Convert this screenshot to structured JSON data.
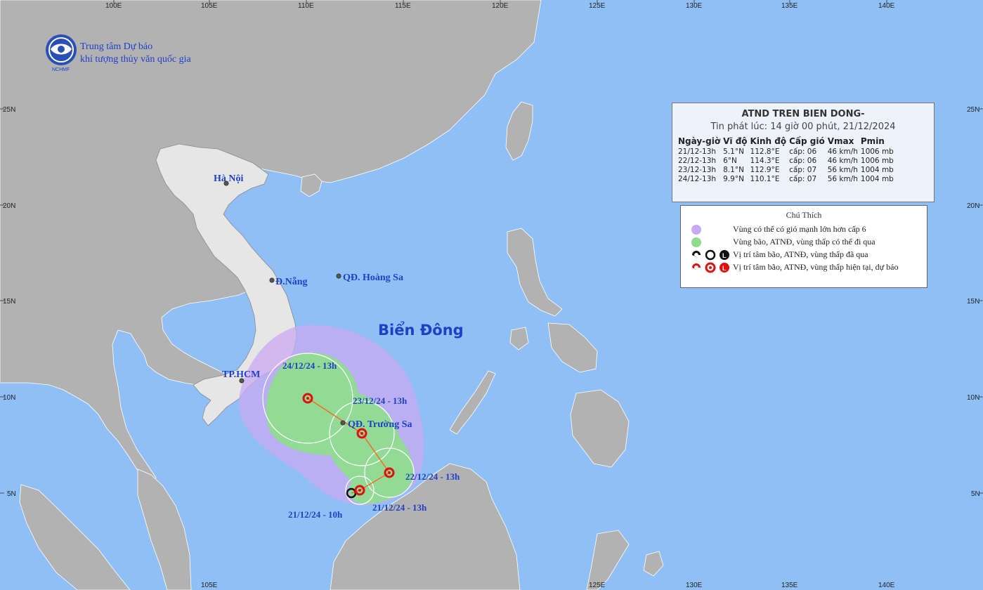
{
  "organization": {
    "line1": "Trung tâm Dự báo",
    "line2": "khí tượng thủy văn quốc gia",
    "logo_text": "NCHMF"
  },
  "grid": {
    "lon_top": [
      "100E",
      "105E",
      "110E",
      "115E",
      "120E",
      "125E",
      "130E",
      "135E",
      "140E"
    ],
    "lon_bottom": [
      "105E",
      "125E",
      "130E",
      "135E",
      "140E"
    ],
    "lat_left": [
      "25N",
      "20N",
      "15N",
      "10N",
      "5N"
    ],
    "lat_right": [
      "25N",
      "20N",
      "15N",
      "10N",
      "5N"
    ]
  },
  "places": {
    "hanoi": "Hà Nội",
    "danang": "Đ.Nẵng",
    "hoangsa": "QĐ. Hoàng Sa",
    "truongsa": "QĐ. Trường Sa",
    "hcm": "TP.HCM",
    "bien_dong": "Biển Đông"
  },
  "track_labels": {
    "t0": "21/12/24 - 10h",
    "t1": "21/12/24 - 13h",
    "t2": "22/12/24 - 13h",
    "t3": "23/12/24 - 13h",
    "t4": "24/12/24 - 13h"
  },
  "info_box": {
    "title": "ATND TREN BIEN DONG-",
    "subtitle": "Tin phát lúc: 14 giờ 00 phút, 21/12/2024",
    "headers": [
      "Ngày-giờ",
      "Vĩ độ",
      "Kinh độ",
      "Cấp gió",
      "Vmax",
      "Pmin"
    ],
    "rows": [
      [
        "21/12-13h",
        "5.1°N",
        "112.8°E",
        "cấp: 06",
        "46 km/h",
        "1006 mb"
      ],
      [
        "22/12-13h",
        "6°N",
        "114.3°E",
        "cấp: 06",
        "46 km/h",
        "1006 mb"
      ],
      [
        "23/12-13h",
        "8.1°N",
        "112.9°E",
        "cấp: 07",
        "56 km/h",
        "1004 mb"
      ],
      [
        "24/12-13h",
        "9.9°N",
        "110.1°E",
        "cấp: 07",
        "56 km/h",
        "1004 mb"
      ]
    ]
  },
  "legend": {
    "title": "Chú Thích",
    "items": [
      "Vùng có thể có gió mạnh lớn hơn cấp 6",
      "Vùng bão, ATNĐ, vùng thấp có thể đi qua",
      "Vị trí tâm bão, ATNĐ, vùng thấp đã qua",
      "Vị trí tâm bão, ATNĐ, vùng thấp hiện tại, dự báo"
    ]
  },
  "colors": {
    "sea": "#8fbff5",
    "land": "#b2b2b2",
    "vietnam": "#e6e6e6",
    "strong_wind_zone": "#c9a9f2",
    "storm_zone": "#8fdc8f",
    "forecast_marker": "#e01010",
    "title_blue": "#1f3fc7"
  }
}
